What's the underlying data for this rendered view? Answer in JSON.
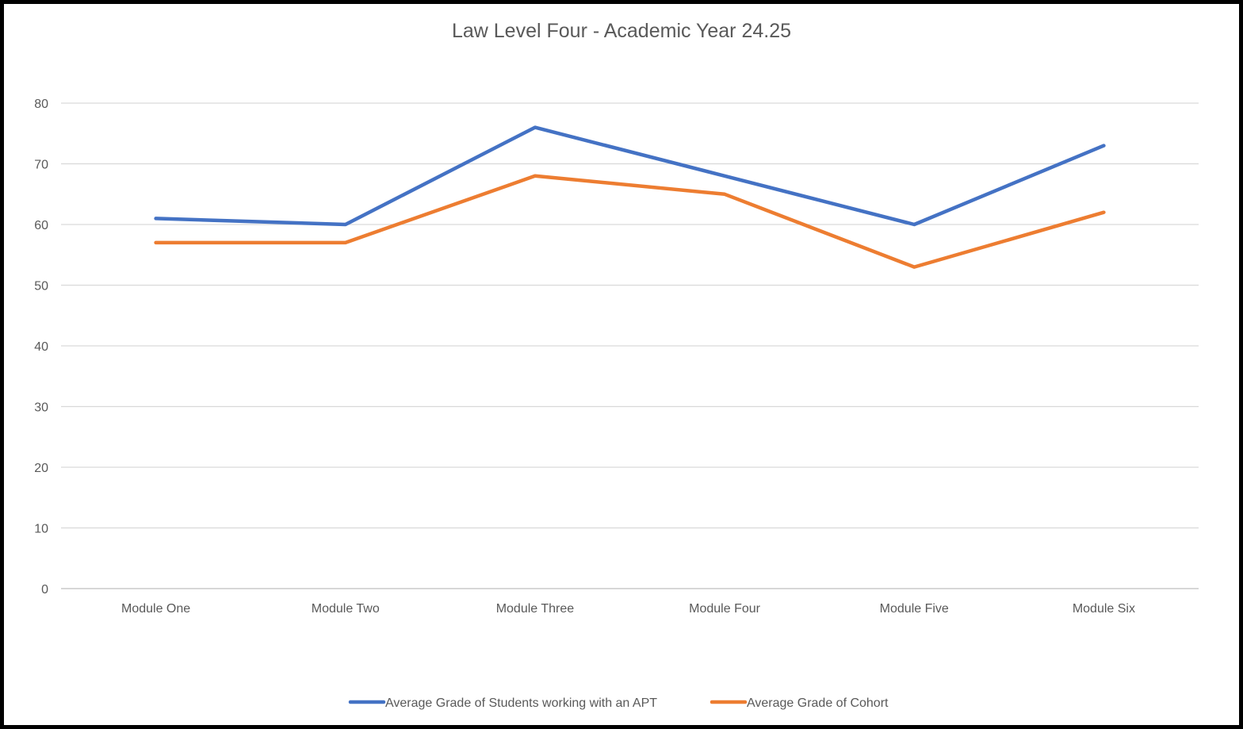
{
  "chart_data": {
    "type": "line",
    "title": "Law Level Four - Academic Year 24.25",
    "xlabel": "",
    "ylabel": "",
    "categories": [
      "Module One",
      "Module Two",
      "Module Three",
      "Module Four",
      "Module Five",
      "Module Six"
    ],
    "series": [
      {
        "name": "Average Grade of Students working with an APT",
        "color": "#4472C4",
        "values": [
          61,
          60,
          76,
          68,
          60,
          73
        ]
      },
      {
        "name": "Average Grade of Cohort",
        "color": "#ED7D31",
        "values": [
          57,
          57,
          68,
          65,
          53,
          62
        ]
      }
    ],
    "ylim": [
      0,
      80
    ],
    "yticks": [
      0,
      10,
      20,
      30,
      40,
      50,
      60,
      70,
      80
    ],
    "grid": true,
    "legend_position": "bottom"
  }
}
